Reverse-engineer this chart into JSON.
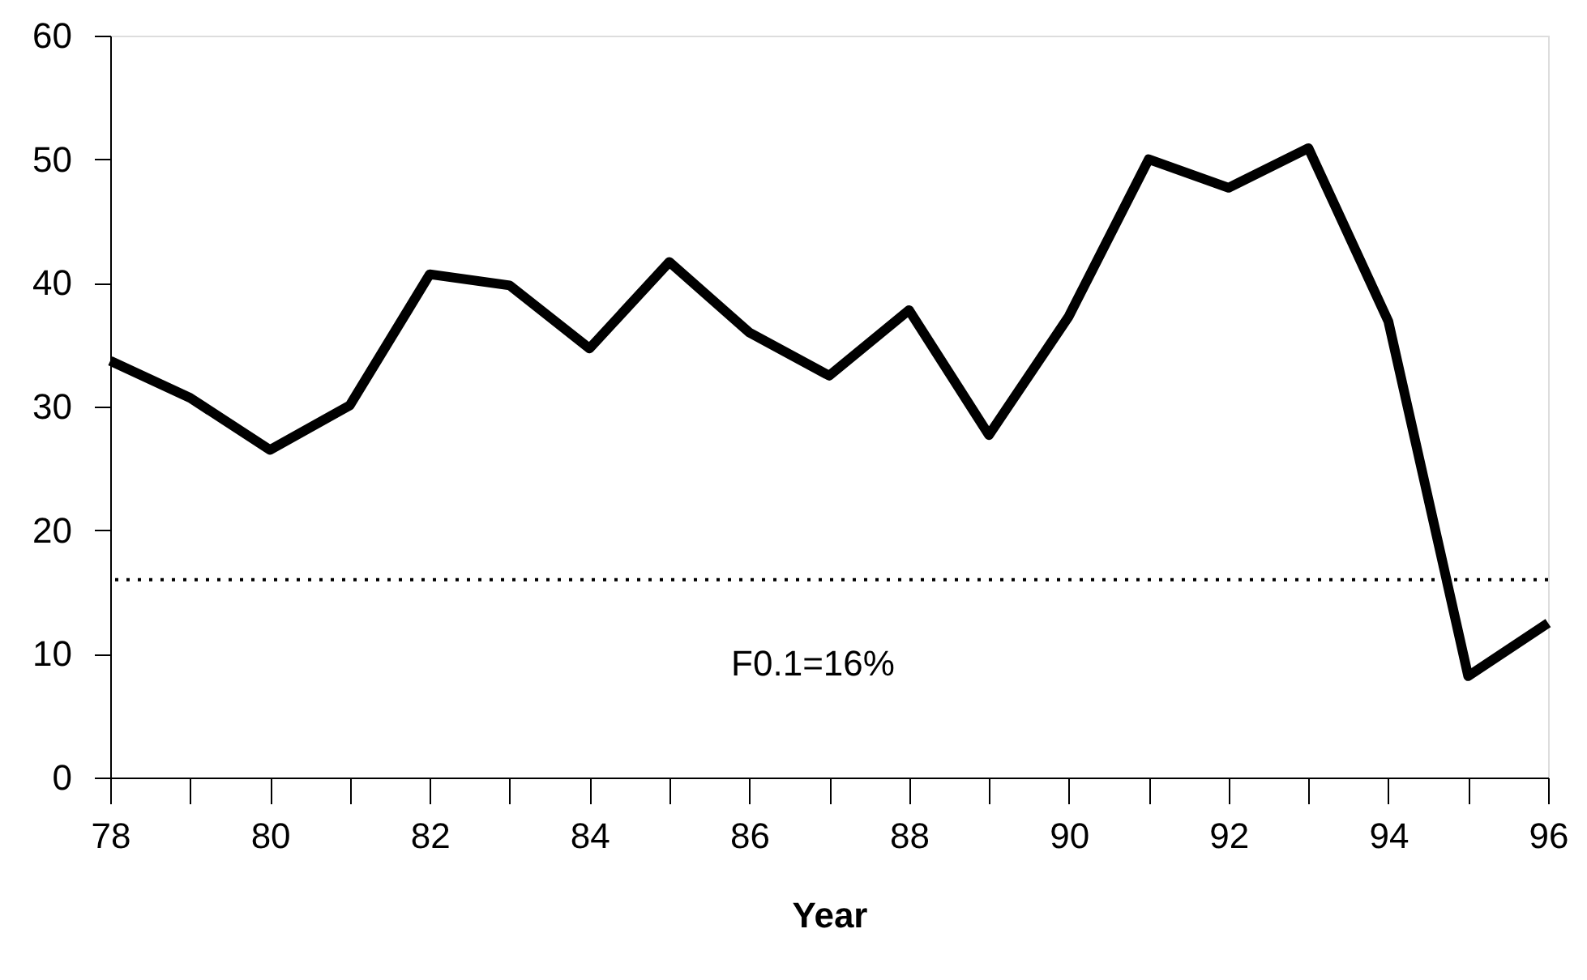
{
  "chart_data": {
    "type": "line",
    "xlabel": "Year",
    "x": [
      78,
      79,
      80,
      81,
      82,
      83,
      84,
      85,
      86,
      87,
      88,
      89,
      90,
      91,
      92,
      93,
      94,
      95,
      96
    ],
    "series": [
      {
        "color": "#000000",
        "values": [
          33.7,
          30.7,
          26.5,
          30.1,
          40.7,
          39.8,
          34.7,
          41.7,
          36.0,
          32.5,
          37.8,
          27.7,
          37.3,
          50.0,
          47.7,
          50.9,
          36.9,
          8.2,
          12.5
        ]
      }
    ],
    "xlim": [
      78,
      96
    ],
    "xticks": [
      78,
      {
        "value": 79,
        "label": null
      },
      80,
      {
        "value": 81,
        "label": null
      },
      82,
      {
        "value": 83,
        "label": null
      },
      84,
      {
        "value": 85,
        "label": null
      },
      86,
      {
        "value": 87,
        "label": null
      },
      88,
      {
        "value": 89,
        "label": null
      },
      90,
      {
        "value": 91,
        "label": null
      },
      92,
      {
        "value": 93,
        "label": null
      },
      94,
      {
        "value": 95,
        "label": null
      },
      96
    ],
    "ylim": [
      0,
      60
    ],
    "yticks": [
      0,
      10,
      20,
      30,
      40,
      50,
      60
    ],
    "ref_lines": [
      {
        "axis": "y",
        "value": 16,
        "label": "F0.1=16%",
        "color": "#000000",
        "line_style": "dotted"
      }
    ],
    "grid": false,
    "marker": "none",
    "line_style": "solid"
  }
}
